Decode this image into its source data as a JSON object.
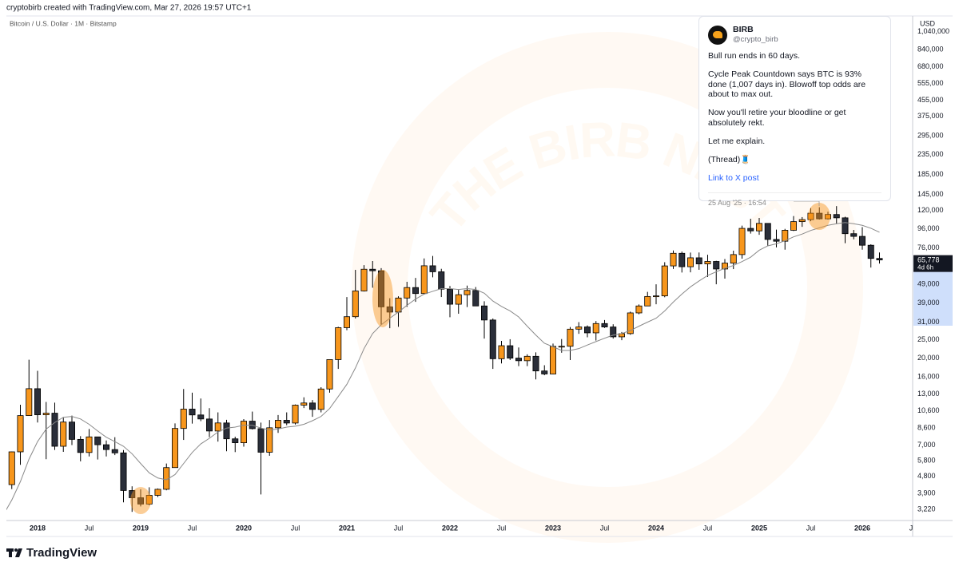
{
  "header": {
    "credit": "cryptobirb created with TradingView.com, Mar 27, 2026 19:57 UTC+1",
    "currency": "USD"
  },
  "chart_data": {
    "type": "candlestick",
    "title": "Bitcoin / U.S. Dollar · 1M · Bitstamp",
    "log_scale": true,
    "up_color": "#f7961c",
    "down_color": "#2a2e39",
    "categories": [
      null,
      null,
      null,
      null,
      "2018",
      null,
      null,
      null,
      null,
      null,
      "Jul",
      null,
      null,
      null,
      null,
      null,
      "2019",
      null,
      null,
      null,
      null,
      null,
      "Jul",
      null,
      null,
      null,
      null,
      null,
      "2020",
      null,
      null,
      null,
      null,
      null,
      "Jul",
      null,
      null,
      null,
      null,
      null,
      "2021",
      null,
      null,
      null,
      null,
      null,
      "Jul",
      null,
      null,
      null,
      null,
      null,
      "2022",
      null,
      null,
      null,
      null,
      null,
      "Jul",
      null,
      null,
      null,
      null,
      null,
      "2023",
      null,
      null,
      null,
      null,
      null,
      "Jul",
      null,
      null,
      null,
      null,
      null,
      "2024",
      null,
      null,
      null,
      null,
      null,
      "Jul",
      null,
      null,
      null,
      null,
      null,
      "2025",
      null,
      null,
      null,
      null,
      null,
      "Jul",
      null,
      null,
      null,
      null,
      null,
      "2026",
      null,
      null,
      null,
      null,
      null,
      "Jul"
    ],
    "open": [
      4735,
      4338,
      6450,
      10000,
      13850,
      10100,
      10300,
      6900,
      9250,
      7500,
      6400,
      7730,
      7030,
      6630,
      6370,
      4040,
      3700,
      3430,
      3810,
      4100,
      5330,
      8560,
      10820,
      10080,
      9600,
      8300,
      9150,
      7550,
      7200,
      9350,
      8540,
      6420,
      8630,
      9450,
      9140,
      11350,
      11650,
      10780,
      13800,
      19700,
      28990,
      33100,
      45200,
      58800,
      57700,
      37300,
      35000,
      41500,
      47100,
      43800,
      61300,
      57000,
      46200,
      38500,
      43200,
      45500,
      37700,
      31800,
      19900,
      23300,
      20050,
      19430,
      20500,
      17170,
      16550,
      23120,
      23140,
      28470,
      29250,
      27220,
      30470,
      29230,
      25940,
      26970,
      34650,
      37700,
      42280,
      42580,
      61200,
      71300,
      60600,
      67500,
      62700,
      64600,
      58970,
      63300,
      70200,
      96400,
      93500,
      102400,
      84300,
      82500,
      94200,
      104600,
      107200,
      115800,
      108200,
      114000,
      109500,
      90400,
      87500,
      78600,
      67000,
      null,
      null,
      null,
      null
    ],
    "high": [
      4975,
      6470,
      11400,
      19666,
      17200,
      11800,
      11700,
      9750,
      10000,
      7800,
      8500,
      7750,
      7400,
      7700,
      6590,
      4250,
      4100,
      4200,
      4140,
      5600,
      9100,
      13800,
      13200,
      12300,
      10950,
      10400,
      9500,
      7750,
      9580,
      10500,
      9190,
      9480,
      10070,
      10400,
      11450,
      12480,
      12070,
      14100,
      19500,
      29300,
      41950,
      58350,
      61800,
      64900,
      59600,
      41400,
      42400,
      50500,
      52900,
      67000,
      69000,
      59100,
      48000,
      45800,
      48200,
      47400,
      39900,
      32400,
      24700,
      25200,
      22800,
      21000,
      21500,
      18400,
      23900,
      25250,
      29200,
      31000,
      29800,
      31400,
      31800,
      30200,
      27500,
      35200,
      38400,
      44700,
      48970,
      64000,
      73800,
      72800,
      71900,
      72000,
      70000,
      65100,
      66500,
      73600,
      99600,
      108300,
      109300,
      102700,
      95000,
      95800,
      111900,
      110500,
      123200,
      124500,
      117900,
      126200,
      111000,
      94600,
      97900,
      79500,
      72000,
      null,
      null,
      null,
      null
    ],
    "low": [
      2972,
      4110,
      5510,
      10800,
      9200,
      5900,
      6600,
      6450,
      7000,
      5750,
      6100,
      5880,
      6100,
      6200,
      3500,
      3120,
      3330,
      3380,
      3730,
      4050,
      5330,
      7450,
      9080,
      9350,
      7710,
      7300,
      6500,
      6430,
      6870,
      8450,
      3850,
      6150,
      8110,
      8900,
      8980,
      10960,
      9850,
      10400,
      13200,
      17600,
      28100,
      32400,
      44900,
      47000,
      30000,
      28800,
      29300,
      37300,
      39600,
      43300,
      53300,
      42000,
      32900,
      34300,
      37200,
      37600,
      25400,
      17600,
      18800,
      19600,
      18200,
      18200,
      15500,
      16300,
      16500,
      21400,
      19600,
      26900,
      25800,
      24800,
      28900,
      25400,
      24900,
      26600,
      34100,
      37600,
      38500,
      41900,
      59000,
      56500,
      56600,
      58400,
      53500,
      49000,
      52500,
      58900,
      66800,
      90500,
      89200,
      78200,
      76600,
      74500,
      93400,
      98200,
      105100,
      107300,
      107300,
      102000,
      80600,
      84400,
      74500,
      60000,
      63000,
      null,
      null,
      null,
      null
    ],
    "close": [
      4338,
      6450,
      10000,
      13850,
      10100,
      10300,
      6900,
      9250,
      7500,
      6400,
      7730,
      7030,
      6630,
      6370,
      4040,
      3700,
      3430,
      3810,
      4100,
      5330,
      8560,
      10820,
      10080,
      9600,
      8300,
      9150,
      7550,
      7200,
      9350,
      8540,
      6420,
      8630,
      9450,
      9140,
      11350,
      11650,
      10780,
      13800,
      19700,
      28990,
      33100,
      45200,
      58800,
      57700,
      37300,
      35000,
      41500,
      47100,
      43800,
      61300,
      57000,
      46200,
      38500,
      43200,
      45500,
      37700,
      31800,
      19900,
      23300,
      20050,
      19430,
      20500,
      17170,
      16550,
      23120,
      23140,
      28470,
      29250,
      27220,
      30470,
      29230,
      25940,
      26970,
      34650,
      37700,
      42280,
      42580,
      61200,
      71300,
      60600,
      67500,
      62700,
      64600,
      58970,
      63300,
      70200,
      96400,
      93500,
      102400,
      84300,
      82500,
      94200,
      104600,
      107200,
      115800,
      108200,
      114000,
      109500,
      90400,
      87500,
      78600,
      67000,
      65778,
      null,
      null,
      null,
      null
    ],
    "moving_average": {
      "color": "#8a8a8a",
      "values": [
        3000,
        3600,
        4500,
        5900,
        7300,
        8500,
        9200,
        9800,
        9900,
        9600,
        9000,
        8300,
        7700,
        7300,
        6900,
        6300,
        5600,
        5000,
        4700,
        4600,
        4900,
        5600,
        6400,
        7100,
        7600,
        8200,
        8600,
        8700,
        8900,
        8900,
        8600,
        8400,
        8500,
        8700,
        8800,
        9000,
        9400,
        9900,
        10900,
        12600,
        14600,
        17800,
        22500,
        27000,
        30000,
        32500,
        35000,
        38000,
        41000,
        43500,
        45000,
        46500,
        46500,
        46000,
        46500,
        46000,
        44000,
        40000,
        37500,
        35500,
        33000,
        29500,
        26500,
        24000,
        23000,
        22000,
        22000,
        22500,
        23500,
        24500,
        25500,
        26500,
        27000,
        28000,
        29500,
        31000,
        32500,
        35500,
        39500,
        43500,
        47500,
        51000,
        54500,
        57000,
        59500,
        61500,
        64500,
        68000,
        74000,
        78000,
        80000,
        83000,
        87000,
        90000,
        94000,
        97000,
        100000,
        102000,
        103500,
        102000,
        100000,
        96500,
        92000,
        null,
        null,
        null,
        null
      ]
    },
    "ylim": [
      2810,
      1260000
    ],
    "yticks": [
      {
        "value": 1040000,
        "label": "1,040,000"
      },
      {
        "value": 840000,
        "label": "840,000"
      },
      {
        "value": 680000,
        "label": "680,000"
      },
      {
        "value": 555000,
        "label": "555,000"
      },
      {
        "value": 455000,
        "label": "455,000"
      },
      {
        "value": 375000,
        "label": "375,000"
      },
      {
        "value": 295000,
        "label": "295,000"
      },
      {
        "value": 235000,
        "label": "235,000"
      },
      {
        "value": 185000,
        "label": "185,000"
      },
      {
        "value": 145000,
        "label": "145,000"
      },
      {
        "value": 120000,
        "label": "120,000"
      },
      {
        "value": 96000,
        "label": "96,000"
      },
      {
        "value": 76000,
        "label": "76,000"
      },
      {
        "value": 49000,
        "label": "49,000"
      },
      {
        "value": 39000,
        "label": "39,000"
      },
      {
        "value": 31000,
        "label": "31,000"
      },
      {
        "value": 25000,
        "label": "25,000"
      },
      {
        "value": 20000,
        "label": "20,000"
      },
      {
        "value": 16000,
        "label": "16,000"
      },
      {
        "value": 13000,
        "label": "13,000"
      },
      {
        "value": 10600,
        "label": "10,600"
      },
      {
        "value": 8600,
        "label": "8,600"
      },
      {
        "value": 7000,
        "label": "7,000"
      },
      {
        "value": 5800,
        "label": "5,800"
      },
      {
        "value": 4800,
        "label": "4,800"
      },
      {
        "value": 3900,
        "label": "3,900"
      },
      {
        "value": 3220,
        "label": "3,220"
      }
    ],
    "last_price_label": "65,778",
    "countdown": "4d 6h",
    "watermark": "THE BIRB NEST"
  },
  "tweet": {
    "name": "BIRB",
    "handle": "@crypto_birb",
    "paragraphs": [
      "Bull run ends in 60 days.",
      "Cycle Peak Countdown says BTC is 93% done (1,007 days in). Blowoff top odds are about to max out.",
      "Now you'll retire your bloodline or get absolutely rekt.",
      "Let me explain.",
      "(Thread)🧵"
    ],
    "link": "Link to X post",
    "date": "25 Aug '25 · 16:54"
  },
  "footer": {
    "brand": "TradingView"
  }
}
